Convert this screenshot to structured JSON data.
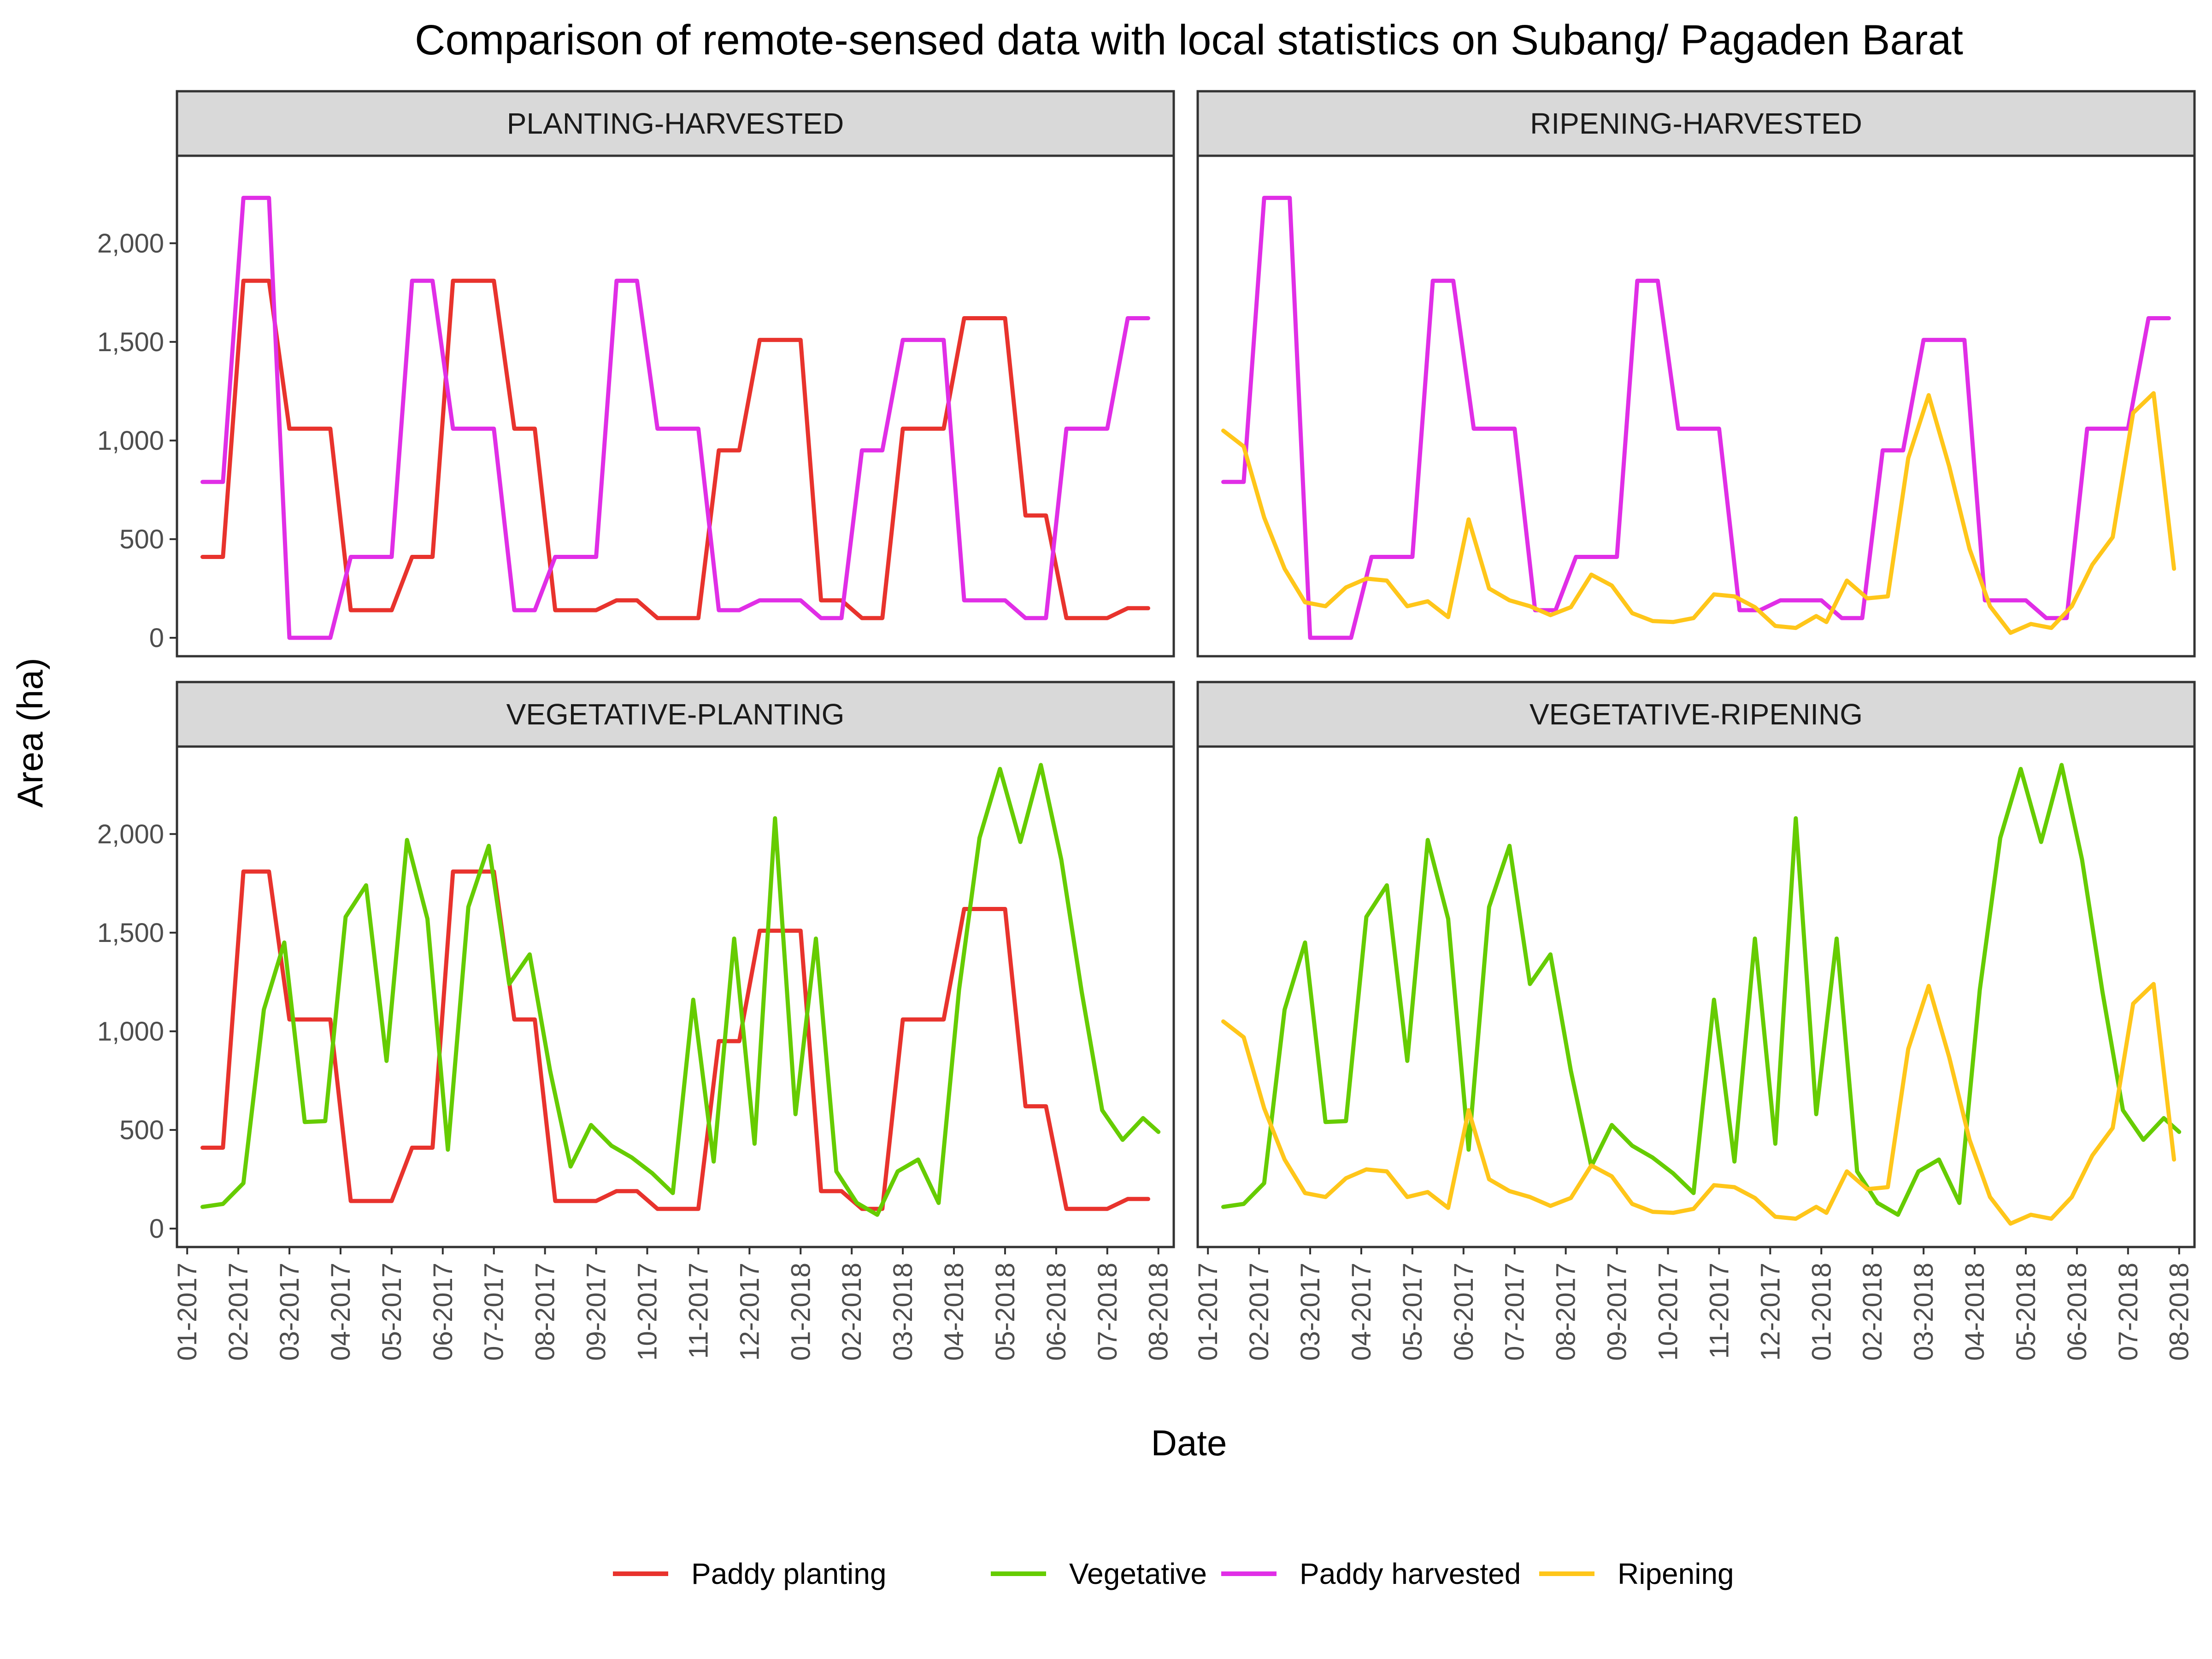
{
  "chart_data": {
    "type": "line",
    "title": "Comparison of remote-sensed data with local statistics on Subang/ Pagaden Barat",
    "xlabel": "Date",
    "ylabel": "Area (ha)",
    "ylim": [
      0,
      2350
    ],
    "y_ticks": [
      0,
      500,
      1000,
      1500,
      2000
    ],
    "y_tick_labels": [
      "0",
      "500",
      "1,000",
      "1,500",
      "2,000"
    ],
    "x_tick_labels": [
      "01-2017",
      "02-2017",
      "03-2017",
      "04-2017",
      "05-2017",
      "06-2017",
      "07-2017",
      "08-2017",
      "09-2017",
      "10-2017",
      "11-2017",
      "12-2017",
      "01-2018",
      "02-2018",
      "03-2018",
      "04-2018",
      "05-2018",
      "06-2018",
      "07-2018",
      "08-2018"
    ],
    "grid": false,
    "legend_position": "bottom",
    "colors": {
      "Paddy planting": "#e8332d",
      "Vegetative": "#66cc00",
      "Paddy harvested": "#e02ee6",
      "Ripening": "#ffc61a"
    },
    "legend": [
      "Paddy planting",
      "Vegetative",
      "Paddy harvested",
      "Ripening"
    ],
    "panels": [
      {
        "strip": "PLANTING-HARVESTED",
        "series": [
          "Paddy planting",
          "Paddy harvested"
        ]
      },
      {
        "strip": "RIPENING-HARVESTED",
        "series": [
          "Paddy harvested",
          "Ripening"
        ]
      },
      {
        "strip": "VEGETATIVE-PLANTING",
        "series": [
          "Paddy planting",
          "Vegetative"
        ]
      },
      {
        "strip": "VEGETATIVE-RIPENING",
        "series": [
          "Vegetative",
          "Ripening"
        ]
      }
    ],
    "series": [
      {
        "name": "Paddy planting",
        "points": [
          [
            0.3,
            410
          ],
          [
            0.7,
            410
          ],
          [
            1.1,
            1810
          ],
          [
            1.6,
            1810
          ],
          [
            2.0,
            1060
          ],
          [
            2.8,
            1060
          ],
          [
            3.2,
            140
          ],
          [
            4.0,
            140
          ],
          [
            4.4,
            410
          ],
          [
            4.8,
            410
          ],
          [
            5.2,
            1810
          ],
          [
            6.0,
            1810
          ],
          [
            6.4,
            1060
          ],
          [
            6.8,
            1060
          ],
          [
            7.2,
            140
          ],
          [
            8.0,
            140
          ],
          [
            8.4,
            190
          ],
          [
            8.8,
            190
          ],
          [
            9.2,
            100
          ],
          [
            10.0,
            100
          ],
          [
            10.4,
            950
          ],
          [
            10.8,
            950
          ],
          [
            11.2,
            1510
          ],
          [
            12.0,
            1510
          ],
          [
            12.4,
            190
          ],
          [
            12.8,
            190
          ],
          [
            13.2,
            100
          ],
          [
            13.6,
            100
          ],
          [
            14.0,
            1060
          ],
          [
            14.8,
            1060
          ],
          [
            15.2,
            1620
          ],
          [
            16.0,
            1620
          ],
          [
            16.4,
            620
          ],
          [
            16.8,
            620
          ],
          [
            17.2,
            100
          ],
          [
            18.0,
            100
          ],
          [
            18.4,
            150
          ],
          [
            18.8,
            150
          ]
        ]
      },
      {
        "name": "Paddy harvested",
        "points": [
          [
            0.3,
            790
          ],
          [
            0.7,
            790
          ],
          [
            1.1,
            2230
          ],
          [
            1.6,
            2230
          ],
          [
            2.0,
            0
          ],
          [
            2.8,
            0
          ],
          [
            3.2,
            410
          ],
          [
            4.0,
            410
          ],
          [
            4.4,
            1810
          ],
          [
            4.8,
            1810
          ],
          [
            5.2,
            1060
          ],
          [
            6.0,
            1060
          ],
          [
            6.4,
            140
          ],
          [
            6.8,
            140
          ],
          [
            7.2,
            410
          ],
          [
            8.0,
            410
          ],
          [
            8.4,
            1810
          ],
          [
            8.8,
            1810
          ],
          [
            9.2,
            1060
          ],
          [
            10.0,
            1060
          ],
          [
            10.4,
            140
          ],
          [
            10.8,
            140
          ],
          [
            11.2,
            190
          ],
          [
            12.0,
            190
          ],
          [
            12.4,
            100
          ],
          [
            12.8,
            100
          ],
          [
            13.2,
            950
          ],
          [
            13.6,
            950
          ],
          [
            14.0,
            1510
          ],
          [
            14.8,
            1510
          ],
          [
            15.2,
            190
          ],
          [
            16.0,
            190
          ],
          [
            16.4,
            100
          ],
          [
            16.8,
            100
          ],
          [
            17.2,
            1060
          ],
          [
            18.0,
            1060
          ],
          [
            18.4,
            1620
          ],
          [
            18.8,
            1620
          ]
        ]
      },
      {
        "name": "Vegetative",
        "points": [
          [
            0.3,
            110
          ],
          [
            0.7,
            125
          ],
          [
            1.1,
            230
          ],
          [
            1.5,
            1110
          ],
          [
            1.9,
            1450
          ],
          [
            2.3,
            540
          ],
          [
            2.7,
            545
          ],
          [
            3.1,
            1580
          ],
          [
            3.5,
            1740
          ],
          [
            3.9,
            850
          ],
          [
            4.3,
            1970
          ],
          [
            4.7,
            1570
          ],
          [
            5.1,
            400
          ],
          [
            5.5,
            1630
          ],
          [
            5.9,
            1940
          ],
          [
            6.3,
            1240
          ],
          [
            6.7,
            1390
          ],
          [
            7.1,
            800
          ],
          [
            7.5,
            315
          ],
          [
            7.9,
            525
          ],
          [
            8.3,
            420
          ],
          [
            8.7,
            360
          ],
          [
            9.1,
            280
          ],
          [
            9.5,
            180
          ],
          [
            9.9,
            1160
          ],
          [
            10.3,
            340
          ],
          [
            10.7,
            1470
          ],
          [
            11.1,
            430
          ],
          [
            11.5,
            2080
          ],
          [
            11.9,
            580
          ],
          [
            12.3,
            1470
          ],
          [
            12.7,
            290
          ],
          [
            13.1,
            130
          ],
          [
            13.5,
            70
          ],
          [
            13.9,
            290
          ],
          [
            14.3,
            350
          ],
          [
            14.7,
            130
          ],
          [
            15.1,
            1210
          ],
          [
            15.5,
            1980
          ],
          [
            15.9,
            2330
          ],
          [
            16.3,
            1960
          ],
          [
            16.7,
            2350
          ],
          [
            17.1,
            1870
          ],
          [
            17.5,
            1200
          ],
          [
            17.9,
            600
          ],
          [
            18.3,
            450
          ],
          [
            18.7,
            560
          ],
          [
            19.0,
            490
          ]
        ]
      },
      {
        "name": "Ripening",
        "points": [
          [
            0.3,
            1050
          ],
          [
            0.7,
            970
          ],
          [
            1.1,
            610
          ],
          [
            1.5,
            350
          ],
          [
            1.9,
            180
          ],
          [
            2.3,
            160
          ],
          [
            2.7,
            255
          ],
          [
            3.1,
            300
          ],
          [
            3.5,
            290
          ],
          [
            3.9,
            160
          ],
          [
            4.3,
            185
          ],
          [
            4.7,
            105
          ],
          [
            5.1,
            600
          ],
          [
            5.5,
            250
          ],
          [
            5.9,
            190
          ],
          [
            6.3,
            160
          ],
          [
            6.7,
            115
          ],
          [
            7.1,
            155
          ],
          [
            7.5,
            320
          ],
          [
            7.9,
            265
          ],
          [
            8.3,
            125
          ],
          [
            8.7,
            85
          ],
          [
            9.1,
            80
          ],
          [
            9.5,
            100
          ],
          [
            9.9,
            220
          ],
          [
            10.3,
            210
          ],
          [
            10.7,
            155
          ],
          [
            11.1,
            60
          ],
          [
            11.5,
            50
          ],
          [
            11.9,
            110
          ],
          [
            12.1,
            80
          ],
          [
            12.5,
            290
          ],
          [
            12.9,
            200
          ],
          [
            13.3,
            210
          ],
          [
            13.7,
            910
          ],
          [
            14.1,
            1230
          ],
          [
            14.5,
            870
          ],
          [
            14.9,
            450
          ],
          [
            15.3,
            160
          ],
          [
            15.7,
            25
          ],
          [
            16.1,
            70
          ],
          [
            16.5,
            50
          ],
          [
            16.9,
            160
          ],
          [
            17.3,
            370
          ],
          [
            17.7,
            510
          ],
          [
            18.1,
            1140
          ],
          [
            18.5,
            1240
          ],
          [
            18.9,
            350
          ]
        ]
      }
    ]
  }
}
